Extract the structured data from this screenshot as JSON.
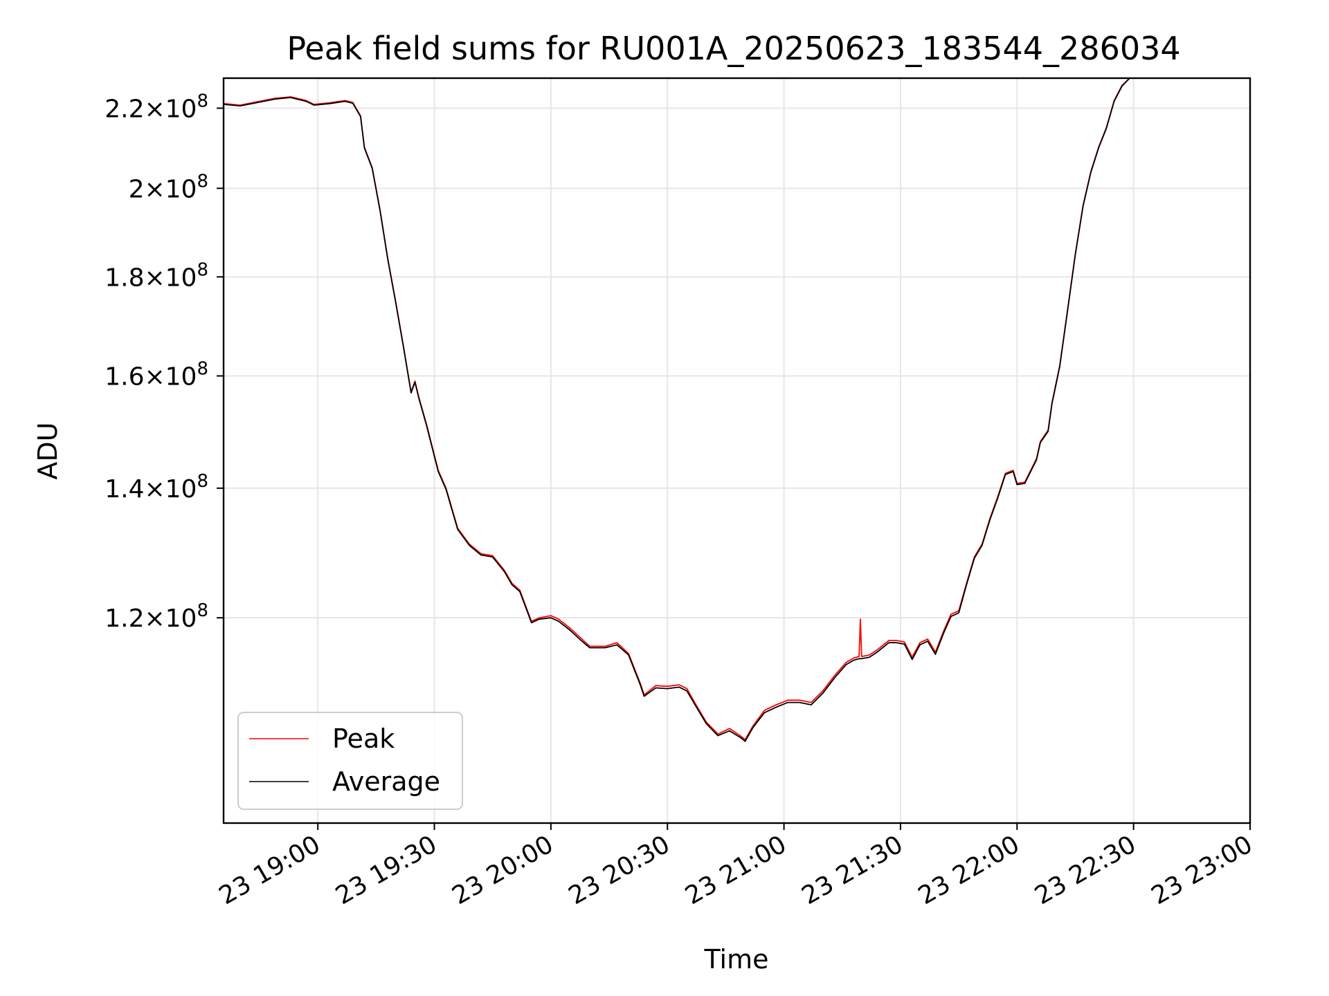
{
  "chart_data": {
    "type": "line",
    "title": "Peak field sums for RU001A_20250623_183544_286034",
    "xlabel": "Time",
    "ylabel": "ADU",
    "y_scale": "log",
    "grid": true,
    "legend_position": "lower-left",
    "xlim": [
      "2025-06-23 18:35:44",
      "2025-06-23 23:00:00"
    ],
    "ylim": [
      94000000,
      228000000
    ],
    "x_ticks": [
      {
        "time": "2025-06-23 19:00",
        "label": "23 19:00"
      },
      {
        "time": "2025-06-23 19:30",
        "label": "23 19:30"
      },
      {
        "time": "2025-06-23 20:00",
        "label": "23 20:00"
      },
      {
        "time": "2025-06-23 20:30",
        "label": "23 20:30"
      },
      {
        "time": "2025-06-23 21:00",
        "label": "23 21:00"
      },
      {
        "time": "2025-06-23 21:30",
        "label": "23 21:30"
      },
      {
        "time": "2025-06-23 22:00",
        "label": "23 22:00"
      },
      {
        "time": "2025-06-23 22:30",
        "label": "23 22:30"
      },
      {
        "time": "2025-06-23 23:00",
        "label": "23 23:00"
      }
    ],
    "y_ticks": [
      {
        "value": 120000000,
        "mantissa": "1.2",
        "base": "10",
        "exp": "8"
      },
      {
        "value": 140000000,
        "mantissa": "1.4",
        "base": "10",
        "exp": "8"
      },
      {
        "value": 160000000,
        "mantissa": "1.6",
        "base": "10",
        "exp": "8"
      },
      {
        "value": 180000000,
        "mantissa": "1.8",
        "base": "10",
        "exp": "8"
      },
      {
        "value": 200000000,
        "mantissa": "2",
        "base": "10",
        "exp": "8"
      },
      {
        "value": 220000000,
        "mantissa": "2.2",
        "base": "10",
        "exp": "8"
      }
    ],
    "series": [
      {
        "name": "Peak",
        "color": "#ff0000",
        "points": [
          [
            "2025-06-23 18:35:44",
            221.2
          ],
          [
            "2025-06-23 18:40",
            220.8
          ],
          [
            "2025-06-23 18:45",
            221.8
          ],
          [
            "2025-06-23 18:49",
            222.6
          ],
          [
            "2025-06-23 18:53",
            223.0
          ],
          [
            "2025-06-23 18:57",
            222.0
          ],
          [
            "2025-06-23 18:59",
            221.0
          ],
          [
            "2025-06-23 19:03",
            221.4
          ],
          [
            "2025-06-23 19:07",
            222.0
          ],
          [
            "2025-06-23 19:09",
            221.5
          ],
          [
            "2025-06-23 19:11",
            218.0
          ],
          [
            "2025-06-23 19:12",
            210.0
          ],
          [
            "2025-06-23 19:14",
            205.0
          ],
          [
            "2025-06-23 19:16",
            195.0
          ],
          [
            "2025-06-23 19:18",
            184.0
          ],
          [
            "2025-06-23 19:20",
            175.0
          ],
          [
            "2025-06-23 19:22",
            166.0
          ],
          [
            "2025-06-23 19:24",
            157.0
          ],
          [
            "2025-06-23 19:25",
            159.0
          ],
          [
            "2025-06-23 19:26",
            156.0
          ],
          [
            "2025-06-23 19:28",
            151.0
          ],
          [
            "2025-06-23 19:31",
            143.0
          ],
          [
            "2025-06-23 19:33",
            140.0
          ],
          [
            "2025-06-23 19:36",
            133.5
          ],
          [
            "2025-06-23 19:39",
            131.0
          ],
          [
            "2025-06-23 19:42",
            129.5
          ],
          [
            "2025-06-23 19:45",
            129.2
          ],
          [
            "2025-06-23 19:48",
            127.0
          ],
          [
            "2025-06-23 19:50",
            125.0
          ],
          [
            "2025-06-23 19:52",
            124.0
          ],
          [
            "2025-06-23 19:55",
            119.5
          ],
          [
            "2025-06-23 19:57",
            120.0
          ],
          [
            "2025-06-23 20:00",
            120.3
          ],
          [
            "2025-06-23 20:02",
            119.8
          ],
          [
            "2025-06-23 20:05",
            118.5
          ],
          [
            "2025-06-23 20:08",
            117.0
          ],
          [
            "2025-06-23 20:10",
            116.0
          ],
          [
            "2025-06-23 20:14",
            116.0
          ],
          [
            "2025-06-23 20:17",
            116.5
          ],
          [
            "2025-06-23 20:20",
            115.0
          ],
          [
            "2025-06-23 20:23",
            111.0
          ],
          [
            "2025-06-23 20:24",
            109.5
          ],
          [
            "2025-06-23 20:27",
            110.7
          ],
          [
            "2025-06-23 20:30",
            110.6
          ],
          [
            "2025-06-23 20:33",
            110.8
          ],
          [
            "2025-06-23 20:35",
            110.3
          ],
          [
            "2025-06-23 20:37",
            108.5
          ],
          [
            "2025-06-23 20:40",
            106.0
          ],
          [
            "2025-06-23 20:43",
            104.5
          ],
          [
            "2025-06-23 20:46",
            105.2
          ],
          [
            "2025-06-23 20:49",
            104.2
          ],
          [
            "2025-06-23 20:50",
            103.8
          ],
          [
            "2025-06-23 20:52",
            105.5
          ],
          [
            "2025-06-23 20:55",
            107.5
          ],
          [
            "2025-06-23 20:58",
            108.2
          ],
          [
            "2025-06-23 21:01",
            108.8
          ],
          [
            "2025-06-23 21:04",
            108.8
          ],
          [
            "2025-06-23 21:07",
            108.5
          ],
          [
            "2025-06-23 21:10",
            110.0
          ],
          [
            "2025-06-23 21:13",
            112.0
          ],
          [
            "2025-06-23 21:16",
            113.8
          ],
          [
            "2025-06-23 21:18",
            114.4
          ],
          [
            "2025-06-23 21:19:20",
            114.6
          ],
          [
            "2025-06-23 21:19:40",
            119.8
          ],
          [
            "2025-06-23 21:20:00",
            114.6
          ],
          [
            "2025-06-23 21:22",
            114.8
          ],
          [
            "2025-06-23 21:24",
            115.5
          ],
          [
            "2025-06-23 21:27",
            116.8
          ],
          [
            "2025-06-23 21:29",
            116.8
          ],
          [
            "2025-06-23 21:31",
            116.6
          ],
          [
            "2025-06-23 21:33",
            114.5
          ],
          [
            "2025-06-23 21:35",
            116.5
          ],
          [
            "2025-06-23 21:37",
            117.0
          ],
          [
            "2025-06-23 21:39",
            115.2
          ],
          [
            "2025-06-23 21:41",
            118.0
          ],
          [
            "2025-06-23 21:43",
            120.5
          ],
          [
            "2025-06-23 21:45",
            121.0
          ],
          [
            "2025-06-23 21:47",
            125.0
          ],
          [
            "2025-06-23 21:49",
            129.0
          ],
          [
            "2025-06-23 21:51",
            131.0
          ],
          [
            "2025-06-23 21:53",
            135.0
          ],
          [
            "2025-06-23 21:55",
            138.5
          ],
          [
            "2025-06-23 21:57",
            142.5
          ],
          [
            "2025-06-23 21:59",
            143.0
          ],
          [
            "2025-06-23 22:00",
            140.8
          ],
          [
            "2025-06-23 22:02",
            141.0
          ],
          [
            "2025-06-23 22:05",
            145.0
          ],
          [
            "2025-06-23 22:06",
            148.0
          ],
          [
            "2025-06-23 22:08",
            150.0
          ],
          [
            "2025-06-23 22:09",
            155.0
          ],
          [
            "2025-06-23 22:11",
            162.0
          ],
          [
            "2025-06-23 22:13",
            173.0
          ],
          [
            "2025-06-23 22:15",
            185.0
          ],
          [
            "2025-06-23 22:17",
            196.0
          ],
          [
            "2025-06-23 22:19",
            204.0
          ],
          [
            "2025-06-23 22:21",
            210.0
          ],
          [
            "2025-06-23 22:23",
            215.0
          ],
          [
            "2025-06-23 22:25",
            222.0
          ],
          [
            "2025-06-23 22:27",
            226.0
          ],
          [
            "2025-06-23 22:29",
            228.0
          ],
          [
            "2025-06-23 22:31",
            228.0
          ]
        ]
      },
      {
        "name": "Average",
        "color": "#000000",
        "points": [
          [
            "2025-06-23 18:35:44",
            221.0
          ],
          [
            "2025-06-23 18:40",
            220.6
          ],
          [
            "2025-06-23 18:45",
            221.6
          ],
          [
            "2025-06-23 18:49",
            222.4
          ],
          [
            "2025-06-23 18:53",
            222.8
          ],
          [
            "2025-06-23 18:57",
            221.8
          ],
          [
            "2025-06-23 18:59",
            220.8
          ],
          [
            "2025-06-23 19:03",
            221.2
          ],
          [
            "2025-06-23 19:07",
            221.8
          ],
          [
            "2025-06-23 19:09",
            221.3
          ],
          [
            "2025-06-23 19:11",
            217.8
          ],
          [
            "2025-06-23 19:12",
            209.8
          ],
          [
            "2025-06-23 19:14",
            204.8
          ],
          [
            "2025-06-23 19:16",
            194.8
          ],
          [
            "2025-06-23 19:18",
            183.8
          ],
          [
            "2025-06-23 19:20",
            174.8
          ],
          [
            "2025-06-23 19:22",
            165.8
          ],
          [
            "2025-06-23 19:24",
            156.8
          ],
          [
            "2025-06-23 19:25",
            158.8
          ],
          [
            "2025-06-23 19:26",
            155.8
          ],
          [
            "2025-06-23 19:28",
            150.8
          ],
          [
            "2025-06-23 19:31",
            142.8
          ],
          [
            "2025-06-23 19:33",
            139.8
          ],
          [
            "2025-06-23 19:36",
            133.3
          ],
          [
            "2025-06-23 19:39",
            130.8
          ],
          [
            "2025-06-23 19:42",
            129.3
          ],
          [
            "2025-06-23 19:45",
            129.0
          ],
          [
            "2025-06-23 19:48",
            126.8
          ],
          [
            "2025-06-23 19:50",
            124.8
          ],
          [
            "2025-06-23 19:52",
            123.8
          ],
          [
            "2025-06-23 19:55",
            119.3
          ],
          [
            "2025-06-23 19:57",
            119.8
          ],
          [
            "2025-06-23 20:00",
            120.0
          ],
          [
            "2025-06-23 20:02",
            119.5
          ],
          [
            "2025-06-23 20:05",
            118.2
          ],
          [
            "2025-06-23 20:08",
            116.7
          ],
          [
            "2025-06-23 20:10",
            115.8
          ],
          [
            "2025-06-23 20:14",
            115.8
          ],
          [
            "2025-06-23 20:17",
            116.2
          ],
          [
            "2025-06-23 20:20",
            114.8
          ],
          [
            "2025-06-23 20:23",
            110.8
          ],
          [
            "2025-06-23 20:24",
            109.3
          ],
          [
            "2025-06-23 20:27",
            110.4
          ],
          [
            "2025-06-23 20:30",
            110.3
          ],
          [
            "2025-06-23 20:33",
            110.5
          ],
          [
            "2025-06-23 20:35",
            110.0
          ],
          [
            "2025-06-23 20:37",
            108.3
          ],
          [
            "2025-06-23 20:40",
            105.8
          ],
          [
            "2025-06-23 20:43",
            104.3
          ],
          [
            "2025-06-23 20:46",
            104.9
          ],
          [
            "2025-06-23 20:49",
            104.0
          ],
          [
            "2025-06-23 20:50",
            103.6
          ],
          [
            "2025-06-23 20:52",
            105.3
          ],
          [
            "2025-06-23 20:55",
            107.2
          ],
          [
            "2025-06-23 20:58",
            107.9
          ],
          [
            "2025-06-23 21:01",
            108.5
          ],
          [
            "2025-06-23 21:04",
            108.5
          ],
          [
            "2025-06-23 21:07",
            108.2
          ],
          [
            "2025-06-23 21:10",
            109.7
          ],
          [
            "2025-06-23 21:13",
            111.7
          ],
          [
            "2025-06-23 21:16",
            113.5
          ],
          [
            "2025-06-23 21:18",
            114.1
          ],
          [
            "2025-06-23 21:19:20",
            114.3
          ],
          [
            "2025-06-23 21:19:40",
            114.3
          ],
          [
            "2025-06-23 21:20:00",
            114.3
          ],
          [
            "2025-06-23 21:22",
            114.5
          ],
          [
            "2025-06-23 21:24",
            115.2
          ],
          [
            "2025-06-23 21:27",
            116.5
          ],
          [
            "2025-06-23 21:29",
            116.5
          ],
          [
            "2025-06-23 21:31",
            116.3
          ],
          [
            "2025-06-23 21:33",
            114.2
          ],
          [
            "2025-06-23 21:35",
            116.2
          ],
          [
            "2025-06-23 21:37",
            116.7
          ],
          [
            "2025-06-23 21:39",
            114.9
          ],
          [
            "2025-06-23 21:41",
            117.7
          ],
          [
            "2025-06-23 21:43",
            120.2
          ],
          [
            "2025-06-23 21:45",
            120.7
          ],
          [
            "2025-06-23 21:47",
            124.8
          ],
          [
            "2025-06-23 21:49",
            128.8
          ],
          [
            "2025-06-23 21:51",
            130.8
          ],
          [
            "2025-06-23 21:53",
            134.8
          ],
          [
            "2025-06-23 21:55",
            138.3
          ],
          [
            "2025-06-23 21:57",
            142.3
          ],
          [
            "2025-06-23 21:59",
            142.8
          ],
          [
            "2025-06-23 22:00",
            140.6
          ],
          [
            "2025-06-23 22:02",
            140.8
          ],
          [
            "2025-06-23 22:05",
            144.8
          ],
          [
            "2025-06-23 22:06",
            147.8
          ],
          [
            "2025-06-23 22:08",
            149.8
          ],
          [
            "2025-06-23 22:09",
            154.8
          ],
          [
            "2025-06-23 22:11",
            161.8
          ],
          [
            "2025-06-23 22:13",
            172.8
          ],
          [
            "2025-06-23 22:15",
            184.8
          ],
          [
            "2025-06-23 22:17",
            195.8
          ],
          [
            "2025-06-23 22:19",
            203.8
          ],
          [
            "2025-06-23 22:21",
            209.8
          ],
          [
            "2025-06-23 22:23",
            214.8
          ],
          [
            "2025-06-23 22:25",
            221.8
          ],
          [
            "2025-06-23 22:27",
            225.8
          ],
          [
            "2025-06-23 22:29",
            228.0
          ],
          [
            "2025-06-23 22:31",
            228.0
          ]
        ]
      }
    ],
    "y_unit_multiplier": 1000000
  }
}
